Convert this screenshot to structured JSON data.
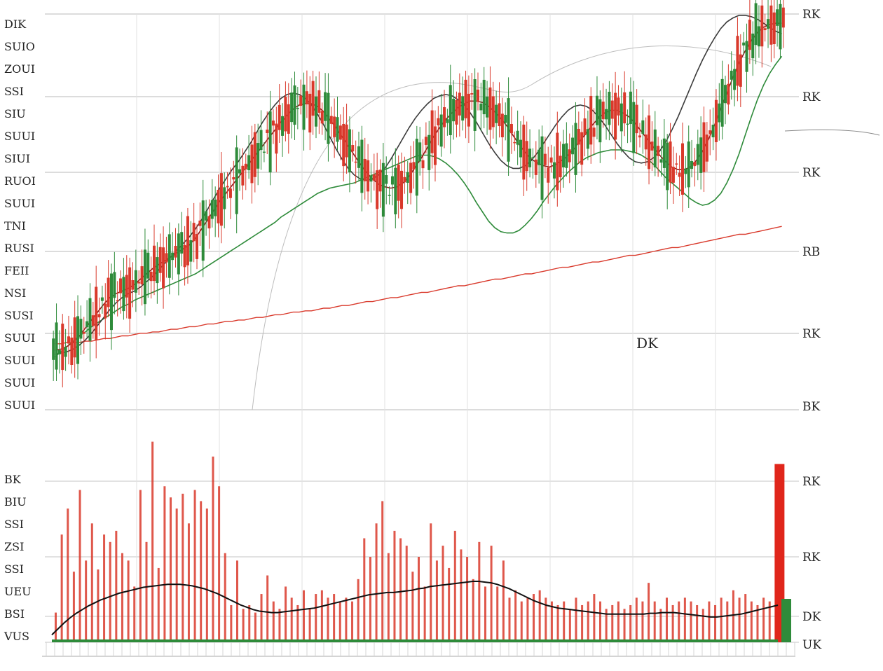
{
  "chart_data": [
    {
      "type": "candlestick",
      "panel": "price",
      "annotation": "DK",
      "right_tick_labels": [
        "RK",
        "RK",
        "RK",
        "RB",
        "RK",
        "BK"
      ],
      "left_tick_labels": [
        "DIK",
        "SUIO",
        "ZOUI",
        "SSI",
        "SIU",
        "SUUI",
        "SIUI",
        "RUOI",
        "SUUI",
        "TNI",
        "RUSI",
        "FEII",
        "NSI",
        "SUSI",
        "SUUI",
        "SUUI",
        "SUUI",
        "SUUI"
      ],
      "grid": true,
      "colors": {
        "up": "#d9392b",
        "down": "#2e8b3a",
        "grid": "#cfcfcf"
      },
      "series": [
        {
          "color": "#d9392b",
          "values": [
            50,
            50,
            51,
            51,
            51,
            52,
            52,
            53,
            54,
            54,
            55,
            56,
            56,
            57,
            58,
            58,
            59,
            59,
            60,
            61,
            61,
            62,
            63,
            63,
            64,
            65,
            65,
            66,
            67,
            67,
            68,
            68,
            69,
            70,
            70,
            71,
            72,
            72,
            73,
            74,
            74,
            75,
            75,
            76,
            77,
            77,
            78,
            79,
            79,
            80,
            81,
            82,
            82,
            83,
            84,
            85,
            85,
            86,
            87,
            88,
            89,
            89,
            90,
            91,
            92,
            93,
            94,
            94,
            95,
            96,
            97,
            98,
            99,
            99,
            100,
            101,
            102,
            103,
            103,
            104,
            105,
            106,
            107,
            108,
            108,
            109,
            110,
            111,
            112,
            112,
            113,
            114,
            115,
            116,
            117,
            117,
            118,
            119,
            120,
            121,
            122,
            123,
            123,
            124,
            125,
            126,
            127,
            128,
            129,
            130,
            131,
            132,
            133,
            133,
            134,
            135,
            136,
            137,
            138,
            139
          ]
        },
        {
          "color": "#2e8b3a",
          "values": [
            40,
            44,
            48,
            52,
            56,
            59,
            63,
            66,
            69,
            72,
            75,
            78,
            80,
            83,
            85,
            87,
            89,
            91,
            93,
            95,
            97,
            99,
            101,
            103,
            106,
            109,
            112,
            115,
            118,
            121,
            124,
            127,
            130,
            133,
            136,
            139,
            142,
            146,
            149,
            152,
            155,
            158,
            161,
            164,
            166,
            168,
            169,
            170,
            171,
            172,
            174,
            176,
            178,
            180,
            182,
            184,
            186,
            188,
            190,
            192,
            193,
            193,
            192,
            190,
            187,
            183,
            178,
            172,
            165,
            157,
            150,
            143,
            138,
            135,
            134,
            134,
            136,
            140,
            145,
            151,
            158,
            164,
            170,
            175,
            180,
            184,
            188,
            191,
            193,
            195,
            196,
            197,
            197,
            197,
            196,
            195,
            193,
            190,
            186,
            181,
            176,
            172,
            168,
            164,
            160,
            157,
            155,
            156,
            159,
            164,
            172,
            182,
            194,
            208,
            222,
            235,
            246,
            255,
            262,
            268
          ]
        },
        {
          "color": "#8a1c1c",
          "values": [
            45,
            46,
            48,
            51,
            56,
            62,
            68,
            74,
            80,
            85,
            88,
            90,
            92,
            95,
            99,
            103,
            107,
            110,
            113,
            116,
            119,
            122,
            125,
            130,
            137,
            144,
            151,
            158,
            164,
            170,
            176,
            182,
            188,
            194,
            200,
            206,
            212,
            218,
            223,
            228,
            231,
            232,
            232,
            230,
            226,
            220,
            214,
            207,
            200,
            193,
            186,
            180,
            175,
            171,
            169,
            168,
            169,
            172,
            177,
            184,
            191,
            199,
            207,
            214,
            220,
            225,
            229,
            232,
            234,
            234,
            233,
            230,
            226,
            221,
            215,
            208,
            201,
            195,
            190,
            187,
            185,
            184,
            186,
            189,
            193,
            198,
            204,
            210,
            216,
            221,
            225,
            227,
            227,
            225,
            222,
            217,
            211,
            205,
            199,
            193,
            188,
            184,
            182,
            182,
            184,
            189,
            196,
            205,
            216,
            228,
            240,
            252,
            263,
            272,
            280,
            286,
            290,
            292,
            293,
            293
          ]
        },
        {
          "color": "#3a3a3a",
          "values": [
            42,
            43,
            44,
            46,
            49,
            53,
            58,
            64,
            70,
            76,
            81,
            85,
            88,
            90,
            93,
            97,
            101,
            106,
            111,
            116,
            121,
            126,
            131,
            137,
            144,
            152,
            160,
            168,
            175,
            182,
            188,
            195,
            202,
            210,
            218,
            225,
            231,
            236,
            239,
            240,
            239,
            236,
            231,
            224,
            216,
            207,
            198,
            190,
            183,
            178,
            175,
            174,
            175,
            178,
            183,
            190,
            198,
            206,
            214,
            221,
            227,
            232,
            236,
            238,
            239,
            238,
            235,
            231,
            225,
            218,
            210,
            202,
            195,
            189,
            185,
            183,
            183,
            185,
            189,
            195,
            202,
            209,
            216,
            222,
            227,
            230,
            231,
            230,
            227,
            222,
            216,
            209,
            202,
            196,
            191,
            188,
            187,
            188,
            191,
            196,
            203,
            212,
            222,
            233,
            244,
            255,
            265,
            274,
            282,
            289,
            294,
            297,
            299,
            299,
            298,
            296,
            293,
            290,
            287,
            285
          ]
        }
      ]
    },
    {
      "type": "bar",
      "panel": "volume",
      "right_tick_labels": [
        "RK",
        "RK",
        "DK",
        "UK"
      ],
      "left_tick_labels": [
        "BK",
        "BIU",
        "SSI",
        "ZSI",
        "SSI",
        "UEU",
        "BSI",
        "VUS"
      ],
      "colors": {
        "bar": "#d9392b",
        "ma": "#111111",
        "base": "#2e8b3a"
      },
      "average": [
        10,
        18,
        26,
        33,
        39,
        44,
        49,
        53,
        57,
        60,
        63,
        66,
        68,
        70,
        72,
        74,
        75,
        76,
        77,
        78,
        78,
        78,
        77,
        76,
        74,
        72,
        69,
        66,
        62,
        58,
        54,
        50,
        47,
        44,
        42,
        41,
        40,
        40,
        41,
        42,
        43,
        44,
        45,
        46,
        48,
        50,
        52,
        54,
        56,
        58,
        60,
        62,
        64,
        65,
        66,
        67,
        67,
        68,
        69,
        70,
        72,
        73,
        75,
        76,
        77,
        78,
        79,
        80,
        81,
        82,
        82,
        81,
        80,
        78,
        75,
        72,
        68,
        64,
        60,
        56,
        53,
        50,
        48,
        46,
        45,
        44,
        43,
        42,
        41,
        40,
        39,
        38,
        38,
        38,
        38,
        38,
        38,
        38,
        39,
        39,
        40,
        40,
        40,
        39,
        38,
        37,
        36,
        35,
        34,
        34,
        35,
        36,
        37,
        38,
        40,
        42,
        44,
        46,
        48,
        50
      ],
      "values": [
        40,
        145,
        180,
        95,
        205,
        110,
        160,
        98,
        145,
        135,
        150,
        120,
        110,
        75,
        205,
        135,
        270,
        100,
        210,
        195,
        180,
        200,
        160,
        205,
        190,
        180,
        250,
        210,
        120,
        50,
        110,
        45,
        50,
        40,
        65,
        90,
        55,
        45,
        75,
        60,
        50,
        70,
        45,
        65,
        70,
        60,
        65,
        55,
        60,
        55,
        85,
        140,
        115,
        160,
        190,
        120,
        150,
        140,
        130,
        95,
        115,
        75,
        160,
        110,
        130,
        100,
        150,
        125,
        115,
        85,
        135,
        75,
        130,
        75,
        110,
        60,
        70,
        55,
        60,
        65,
        70,
        60,
        55,
        50,
        55,
        45,
        60,
        50,
        55,
        65,
        55,
        45,
        50,
        55,
        45,
        50,
        60,
        55,
        80,
        55,
        45,
        60,
        50,
        55,
        60,
        55,
        50,
        45,
        55,
        50,
        60,
        55,
        70,
        60,
        65,
        55,
        50,
        60,
        55,
        240
      ]
    }
  ]
}
